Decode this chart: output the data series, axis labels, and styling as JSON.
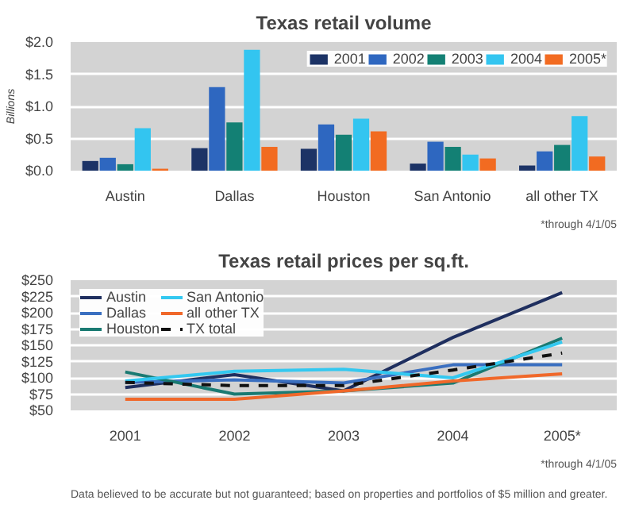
{
  "chart_data": [
    {
      "type": "bar",
      "title": "Texas retail volume",
      "ylabel": "Billions",
      "categories": [
        "Austin",
        "Dallas",
        "Houston",
        "San Antonio",
        "all other TX"
      ],
      "series": [
        {
          "name": "2001",
          "color": "#1c3366",
          "values": [
            0.15,
            0.35,
            0.34,
            0.11,
            0.08
          ]
        },
        {
          "name": "2002",
          "color": "#2e67c0",
          "values": [
            0.2,
            1.3,
            0.72,
            0.45,
            0.3
          ]
        },
        {
          "name": "2003",
          "color": "#138074",
          "values": [
            0.1,
            0.75,
            0.56,
            0.37,
            0.4
          ]
        },
        {
          "name": "2004",
          "color": "#33c5f0",
          "values": [
            0.66,
            1.88,
            0.81,
            0.25,
            0.85
          ]
        },
        {
          "name": "2005*",
          "color": "#f26b21",
          "values": [
            0.03,
            0.37,
            0.61,
            0.19,
            0.22
          ]
        }
      ],
      "ylim": [
        0,
        2
      ],
      "yticks": [
        {
          "value": 0,
          "label": "$0.0"
        },
        {
          "value": 0.5,
          "label": "$0.5"
        },
        {
          "value": 1,
          "label": "$1.0"
        },
        {
          "value": 1.5,
          "label": "$1.5"
        },
        {
          "value": 2,
          "label": "$2.0"
        }
      ],
      "grid": "y",
      "legend": "top right",
      "annotations": [
        "*through 4/1/05"
      ]
    },
    {
      "type": "line",
      "title": "Texas retail prices per sq.ft.",
      "categories": [
        "2001",
        "2002",
        "2003",
        "2004",
        "2005*"
      ],
      "series": [
        {
          "name": "Austin",
          "color": "#1f2f5f",
          "values": [
            85,
            105,
            80,
            162,
            231
          ]
        },
        {
          "name": "Dallas",
          "color": "#3a6fc0",
          "values": [
            93,
            97,
            92,
            120,
            120
          ]
        },
        {
          "name": "Houston",
          "color": "#1a7a72",
          "values": [
            109,
            75,
            80,
            92,
            161
          ]
        },
        {
          "name": "San Antonio",
          "color": "#33c8f0",
          "values": [
            95,
            110,
            113,
            100,
            155
          ]
        },
        {
          "name": "all other TX",
          "color": "#f0682a",
          "values": [
            67,
            67,
            80,
            95,
            106
          ]
        },
        {
          "name": "TX total",
          "color": "#111111",
          "line_style": "dashed",
          "values": [
            93,
            88,
            88,
            112,
            138
          ]
        }
      ],
      "ylim": [
        50,
        250
      ],
      "yticks": [
        {
          "value": 50,
          "label": "$50"
        },
        {
          "value": 75,
          "label": "$75"
        },
        {
          "value": 100,
          "label": "$100"
        },
        {
          "value": 125,
          "label": "$125"
        },
        {
          "value": 150,
          "label": "$150"
        },
        {
          "value": 175,
          "label": "$175"
        },
        {
          "value": 200,
          "label": "$200"
        },
        {
          "value": 225,
          "label": "$225"
        },
        {
          "value": 250,
          "label": "$250"
        }
      ],
      "grid": "y",
      "legend": "top left",
      "marker": "none",
      "annotations": [
        "*through 4/1/05",
        "Data believed to be accurate but not guaranteed; based on properties and portfolios of $5 million and greater."
      ]
    }
  ]
}
